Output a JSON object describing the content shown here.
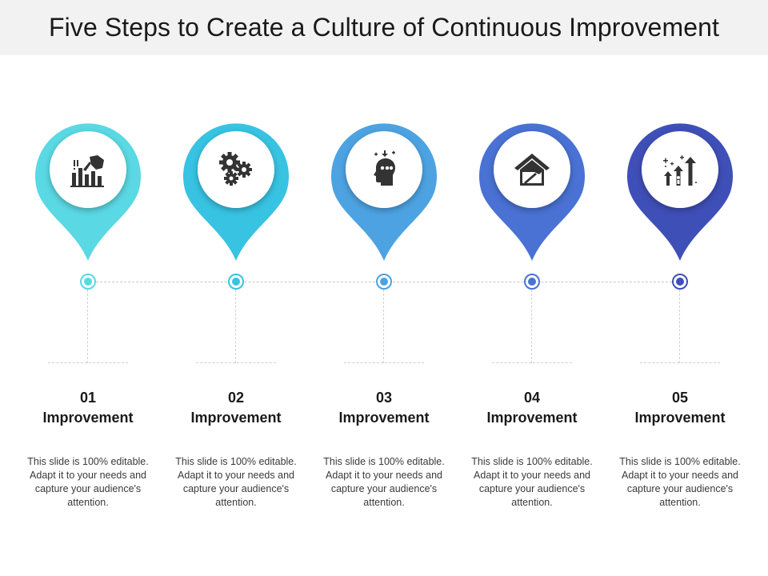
{
  "title": "Five Steps to Create a Culture of Continuous Improvement",
  "steps": [
    {
      "number": "01",
      "heading": "Improvement",
      "text": "This slide is 100% editable. Adapt it to your needs and capture your audience's attention.",
      "color": "#5ad9e4",
      "icon": "chart-hand-icon"
    },
    {
      "number": "02",
      "heading": "Improvement",
      "text": "This slide is 100% editable. Adapt it to your needs and capture your audience's attention.",
      "color": "#38c3e3",
      "icon": "gears-icon"
    },
    {
      "number": "03",
      "heading": "Improvement",
      "text": "This slide is 100% editable. Adapt it to your needs and capture your audience's attention.",
      "color": "#4da3e2",
      "icon": "head-mind-icon"
    },
    {
      "number": "04",
      "heading": "Improvement",
      "text": "This slide is 100% editable. Adapt it to your needs and capture your audience's attention.",
      "color": "#4a72d4",
      "icon": "house-hammer-icon"
    },
    {
      "number": "05",
      "heading": "Improvement",
      "text": "This slide is 100% editable. Adapt it to your needs and capture your audience's attention.",
      "color": "#3f4fb8",
      "icon": "growth-arrows-icon"
    }
  ]
}
